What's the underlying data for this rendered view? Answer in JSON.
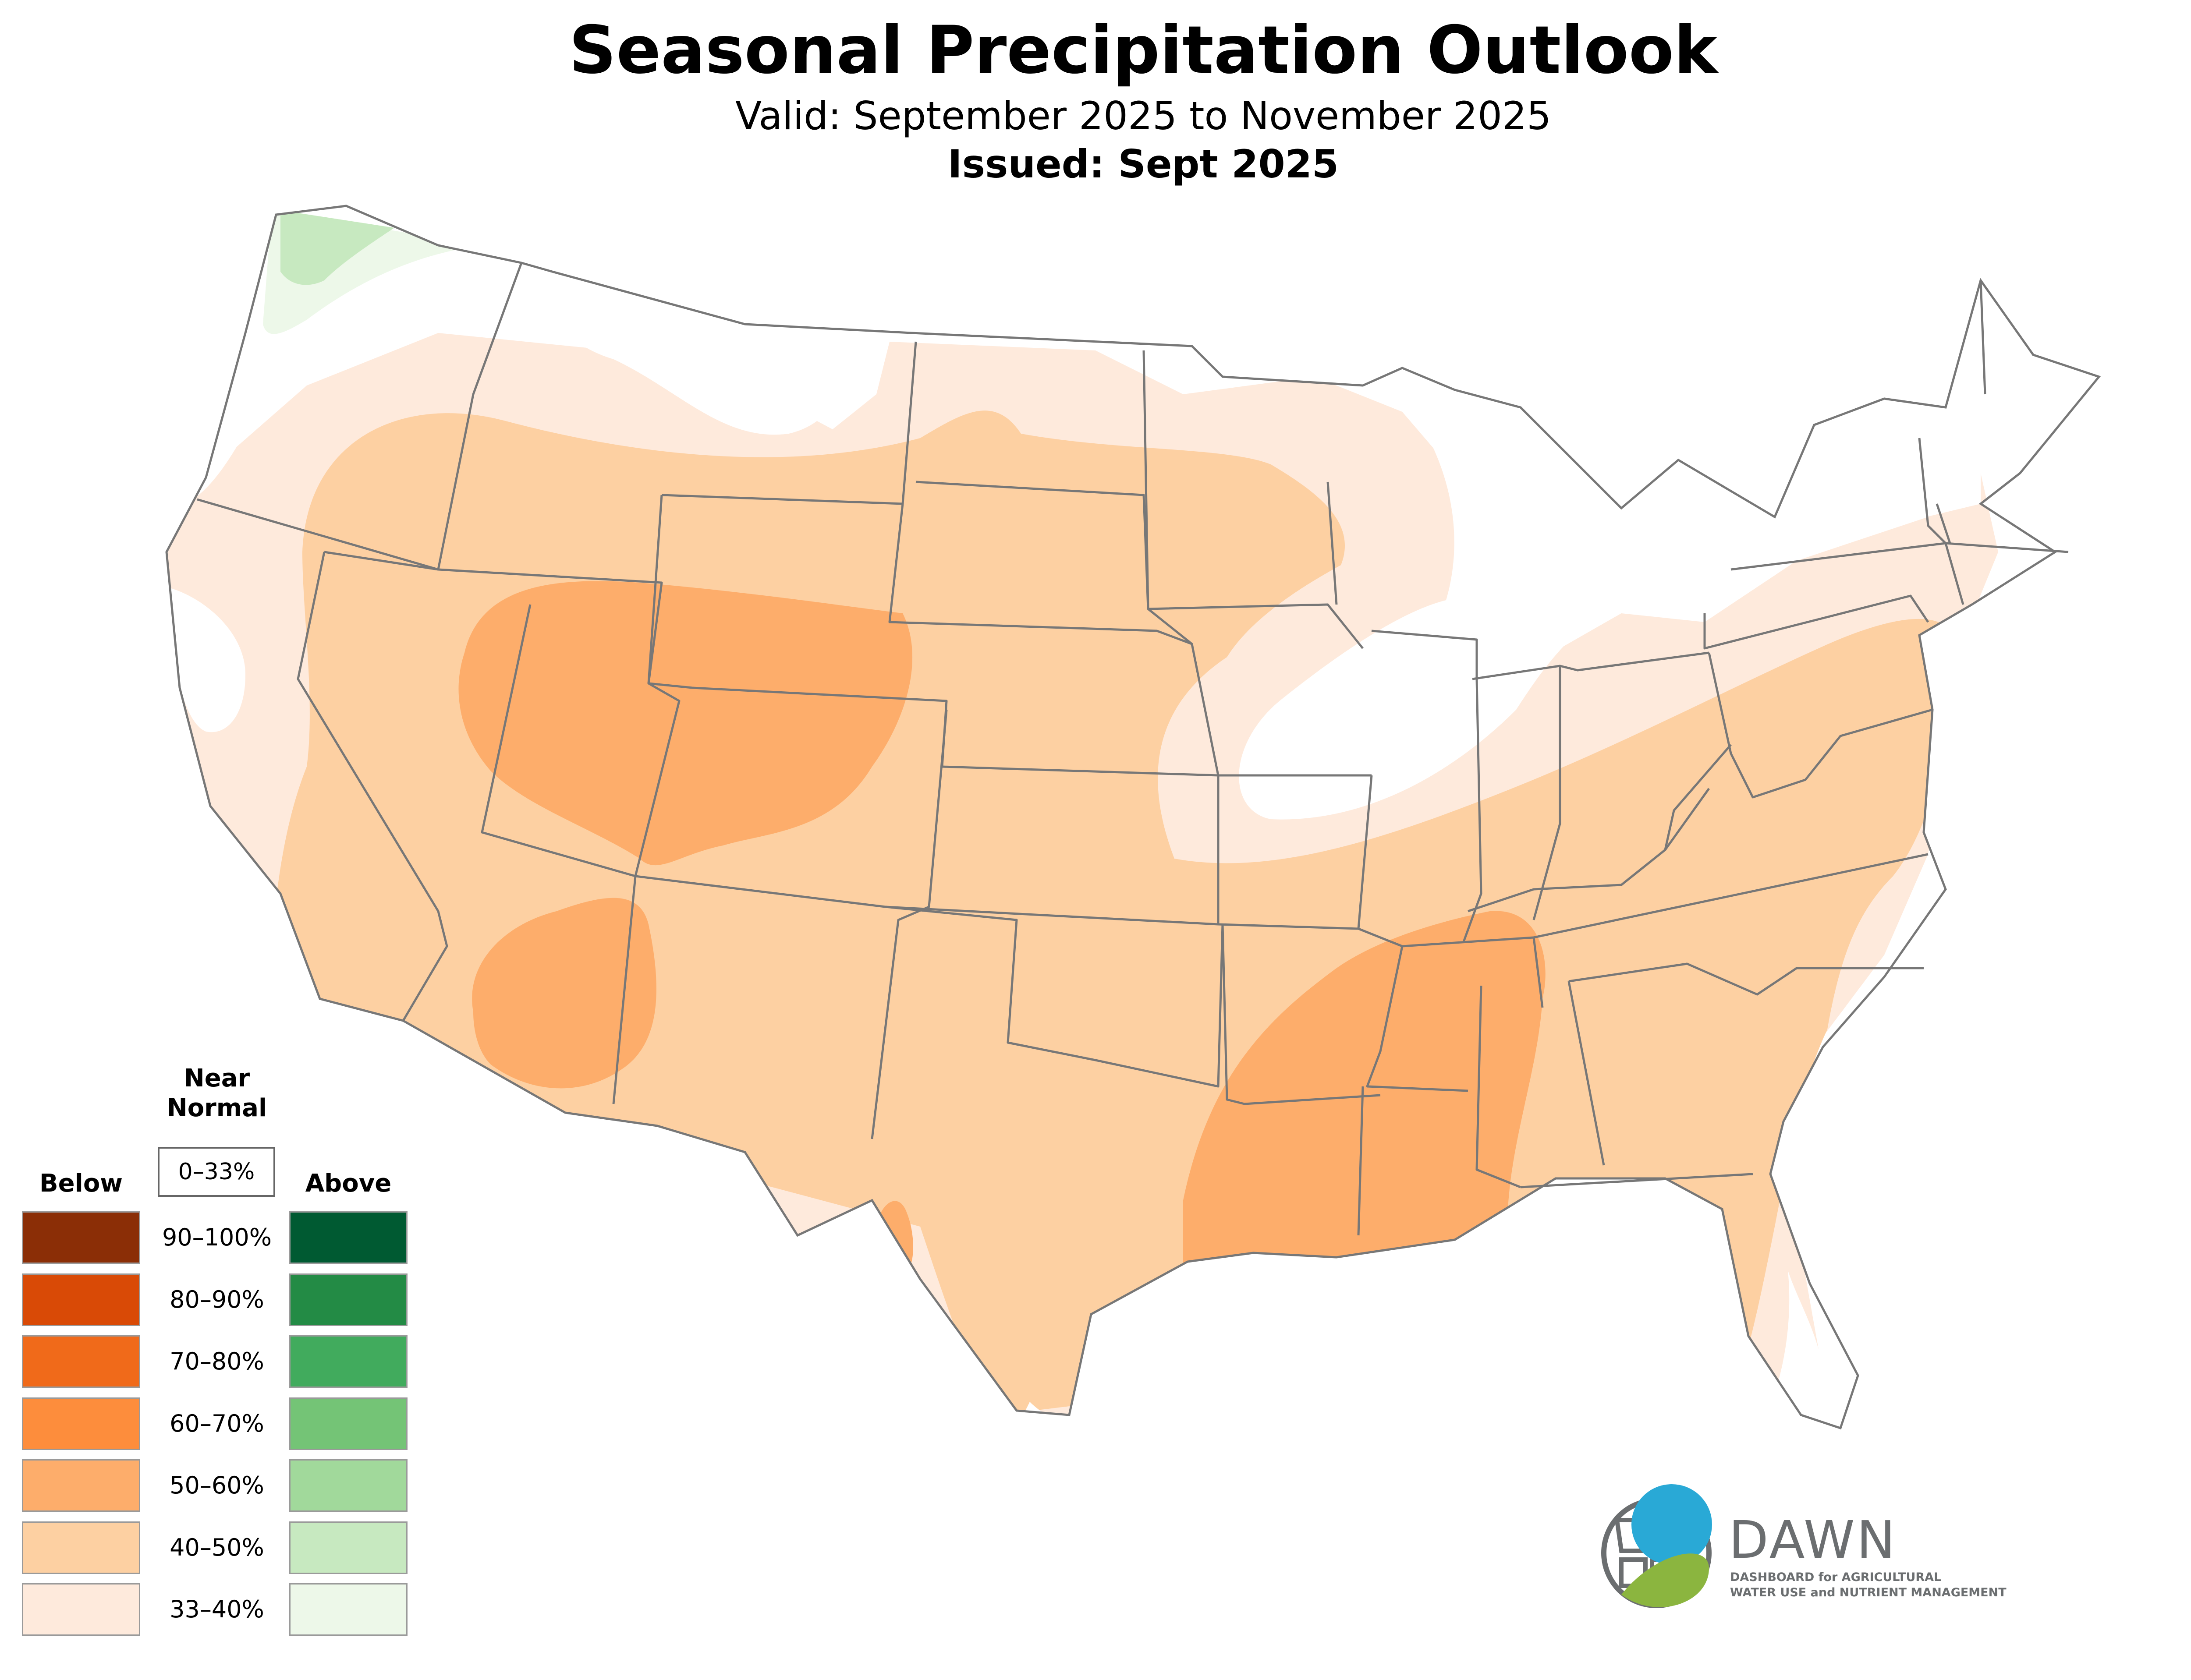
{
  "header": {
    "title": "Seasonal Precipitation Outlook",
    "valid": "Valid: September 2025 to November 2025",
    "issued": "Issued: Sept 2025"
  },
  "legend": {
    "near_normal_title_line1": "Near",
    "near_normal_title_line2": "Normal",
    "near_normal_range": "0–33%",
    "below_title": "Below",
    "above_title": "Above",
    "ranges": [
      "90–100%",
      "80–90%",
      "70–80%",
      "60–70%",
      "50–60%",
      "40–50%",
      "33–40%"
    ],
    "below_colors": [
      "#8b2e06",
      "#d94a06",
      "#f06a1a",
      "#fd8d3c",
      "#fdad6b",
      "#fdd0a2",
      "#feeadc"
    ],
    "above_colors": [
      "#005a32",
      "#238b45",
      "#41ab5d",
      "#74c476",
      "#a1d99b",
      "#c7e9c0",
      "#edf8e9"
    ]
  },
  "colors": {
    "state_border": "#777777",
    "outline": "#777777"
  },
  "logo": {
    "name": "DAWN",
    "line1": "DASHBOARD for AGRICULTURAL",
    "line2": "WATER USE and NUTRIENT MANAGEMENT",
    "blue": "#29a9d6",
    "green": "#8bb53f"
  }
}
